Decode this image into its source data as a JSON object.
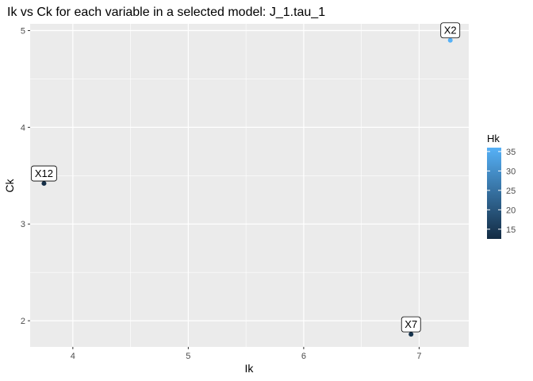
{
  "chart_data": {
    "type": "scatter",
    "title": "Ik vs Ck for each variable in a selected model: J_1.tau_1",
    "xlabel": "Ik",
    "ylabel": "Ck",
    "xlim": [
      3.63,
      7.43
    ],
    "ylim": [
      1.73,
      5.07
    ],
    "x_ticks": [
      4,
      5,
      6,
      7
    ],
    "y_ticks": [
      2,
      3,
      4,
      5
    ],
    "grid": true,
    "points": [
      {
        "label": "X12",
        "x": 3.75,
        "y": 3.42,
        "hk": 13
      },
      {
        "label": "X2",
        "x": 7.27,
        "y": 4.9,
        "hk": 36
      },
      {
        "label": "X7",
        "x": 6.93,
        "y": 1.86,
        "hk": 14
      }
    ],
    "legend": {
      "title": "Hk",
      "position": "right",
      "range": [
        12.5,
        36
      ],
      "ticks": [
        15,
        20,
        25,
        30,
        35
      ],
      "color_low": "#132b43",
      "color_high": "#56b1f7"
    },
    "panel_color": "#ebebeb",
    "grid_color": "#ffffff"
  }
}
